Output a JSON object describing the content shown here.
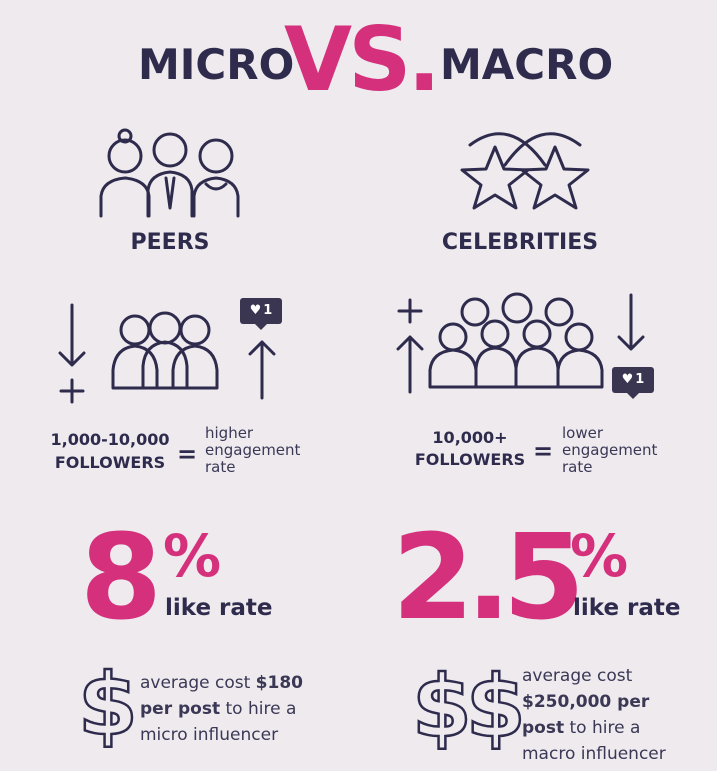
{
  "header": {
    "left": "MICRO",
    "vs": "VS.",
    "right": "MACRO"
  },
  "columns": [
    {
      "group": "PEERS",
      "badge": "1",
      "followers": "1,000-10,000",
      "followers_label": "FOLLOWERS",
      "equals": "=",
      "engagement": "higher engagement rate",
      "rate": "8",
      "rate_unit": "%",
      "rate_label": "like rate",
      "dollar": "$",
      "cost_intro": "average cost ",
      "cost_amount": "$180 per post",
      "cost_outro": " to hire a micro influencer"
    },
    {
      "group": "CELEBRITIES",
      "badge": "1",
      "followers": "10,000+",
      "followers_label": "FOLLOWERS",
      "equals": "=",
      "engagement": "lower engagement rate",
      "rate": "2.5",
      "rate_unit": "%",
      "rate_label": "like rate",
      "dollar": "$$",
      "cost_intro": "average cost ",
      "cost_amount": "$250,000 per post",
      "cost_outro": " to hire a macro influencer"
    }
  ]
}
